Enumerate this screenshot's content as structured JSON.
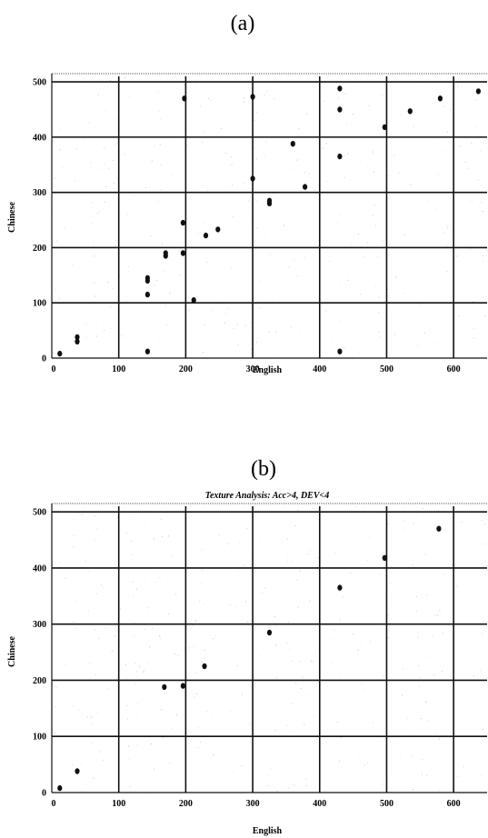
{
  "chart_data": [
    {
      "type": "scatter",
      "panel_label": "(a)",
      "title": "",
      "xlabel": "English",
      "ylabel": "Chinese",
      "xlim": [
        0,
        650
      ],
      "ylim": [
        0,
        510
      ],
      "xticks": [
        0,
        100,
        200,
        300,
        400,
        500,
        600
      ],
      "yticks": [
        0,
        100,
        200,
        300,
        400,
        500
      ],
      "grid": true,
      "points": [
        {
          "x": 12,
          "y": 8
        },
        {
          "x": 38,
          "y": 30
        },
        {
          "x": 38,
          "y": 38
        },
        {
          "x": 143,
          "y": 12
        },
        {
          "x": 143,
          "y": 115
        },
        {
          "x": 143,
          "y": 140
        },
        {
          "x": 143,
          "y": 145
        },
        {
          "x": 170,
          "y": 185
        },
        {
          "x": 170,
          "y": 190
        },
        {
          "x": 196,
          "y": 190
        },
        {
          "x": 196,
          "y": 245
        },
        {
          "x": 198,
          "y": 470
        },
        {
          "x": 212,
          "y": 105
        },
        {
          "x": 230,
          "y": 222
        },
        {
          "x": 248,
          "y": 233
        },
        {
          "x": 300,
          "y": 325
        },
        {
          "x": 300,
          "y": 473
        },
        {
          "x": 325,
          "y": 280
        },
        {
          "x": 325,
          "y": 285
        },
        {
          "x": 360,
          "y": 388
        },
        {
          "x": 378,
          "y": 310
        },
        {
          "x": 430,
          "y": 12
        },
        {
          "x": 430,
          "y": 365
        },
        {
          "x": 430,
          "y": 450
        },
        {
          "x": 430,
          "y": 488
        },
        {
          "x": 497,
          "y": 418
        },
        {
          "x": 535,
          "y": 447
        },
        {
          "x": 580,
          "y": 470
        },
        {
          "x": 637,
          "y": 483
        }
      ]
    },
    {
      "type": "scatter",
      "panel_label": "(b)",
      "title": "Texture Analysis: Acc>4, DEV<4",
      "xlabel": "English",
      "ylabel": "Chinese",
      "xlim": [
        0,
        650
      ],
      "ylim": [
        0,
        510
      ],
      "xticks": [
        0,
        100,
        200,
        300,
        400,
        500,
        600
      ],
      "yticks": [
        0,
        100,
        200,
        300,
        400,
        500
      ],
      "grid": true,
      "points": [
        {
          "x": 12,
          "y": 8
        },
        {
          "x": 38,
          "y": 38
        },
        {
          "x": 168,
          "y": 188
        },
        {
          "x": 196,
          "y": 190
        },
        {
          "x": 228,
          "y": 225
        },
        {
          "x": 325,
          "y": 285
        },
        {
          "x": 430,
          "y": 365
        },
        {
          "x": 497,
          "y": 418
        },
        {
          "x": 578,
          "y": 470
        }
      ]
    }
  ]
}
